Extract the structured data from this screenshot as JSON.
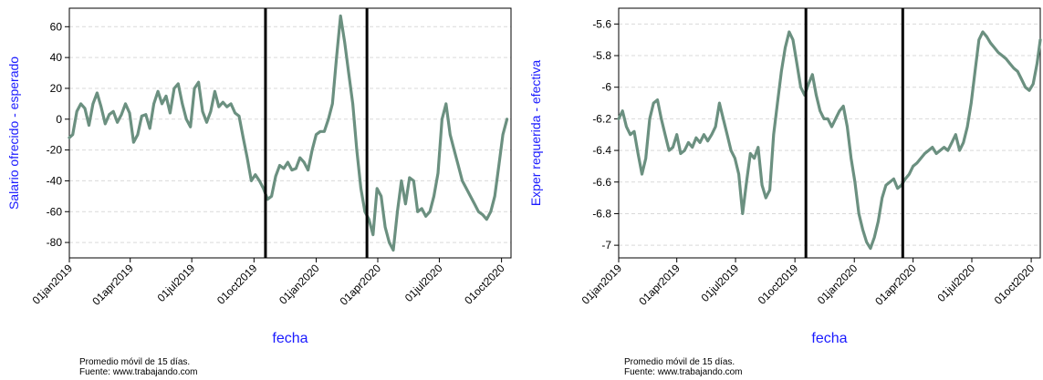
{
  "charts": [
    {
      "note_line1": "Promedio móvil de 15 días.",
      "note_line2": "Fuente: www.trabajando.com"
    },
    {
      "note_line1": "Promedio móvil de 15 días.",
      "note_line2": "Fuente: www.trabajando.com"
    }
  ],
  "colors": {
    "series": "#6b9080",
    "axis_label": "#1a1aff",
    "grid": "#d9d9d9",
    "vline": "#000000"
  },
  "chart_data": [
    {
      "type": "line",
      "xlabel": "fecha",
      "ylabel": "Salario ofrecido - esperado",
      "xlim": [
        "2019-01-01",
        "2020-10-15"
      ],
      "ylim": [
        -90,
        72
      ],
      "yticks": [
        -80,
        -60,
        -40,
        -20,
        0,
        20,
        40,
        60
      ],
      "xticks": [
        "2019-01-01",
        "2019-04-01",
        "2019-07-01",
        "2019-10-01",
        "2020-01-01",
        "2020-04-01",
        "2020-07-01",
        "2020-10-01"
      ],
      "xtick_labels": [
        "01jan2019",
        "01apr2019",
        "01jul2019",
        "01oct2019",
        "01jan2020",
        "01apr2020",
        "01jul2020",
        "01oct2020"
      ],
      "vlines": [
        "2019-10-18",
        "2020-03-16"
      ],
      "grid": true,
      "series": [
        {
          "x": [
            "2019-01-01",
            "2019-01-06",
            "2019-01-12",
            "2019-01-18",
            "2019-01-24",
            "2019-01-30",
            "2019-02-05",
            "2019-02-11",
            "2019-02-17",
            "2019-02-23",
            "2019-03-01",
            "2019-03-07",
            "2019-03-13",
            "2019-03-19",
            "2019-03-25",
            "2019-03-31",
            "2019-04-06",
            "2019-04-12",
            "2019-04-18",
            "2019-04-24",
            "2019-04-30",
            "2019-05-06",
            "2019-05-12",
            "2019-05-18",
            "2019-05-24",
            "2019-05-30",
            "2019-06-05",
            "2019-06-11",
            "2019-06-17",
            "2019-06-23",
            "2019-06-29",
            "2019-07-05",
            "2019-07-11",
            "2019-07-17",
            "2019-07-23",
            "2019-07-29",
            "2019-08-04",
            "2019-08-10",
            "2019-08-16",
            "2019-08-22",
            "2019-08-28",
            "2019-09-03",
            "2019-09-09",
            "2019-09-15",
            "2019-09-21",
            "2019-09-27",
            "2019-10-03",
            "2019-10-09",
            "2019-10-15",
            "2019-10-21",
            "2019-10-27",
            "2019-11-02",
            "2019-11-08",
            "2019-11-14",
            "2019-11-20",
            "2019-11-26",
            "2019-12-02",
            "2019-12-08",
            "2019-12-14",
            "2019-12-20",
            "2019-12-26",
            "2020-01-01",
            "2020-01-07",
            "2020-01-13",
            "2020-01-19",
            "2020-01-25",
            "2020-01-31",
            "2020-02-06",
            "2020-02-12",
            "2020-02-18",
            "2020-02-24",
            "2020-03-01",
            "2020-03-07",
            "2020-03-13",
            "2020-03-19",
            "2020-03-25",
            "2020-03-31",
            "2020-04-06",
            "2020-04-12",
            "2020-04-18",
            "2020-04-24",
            "2020-04-30",
            "2020-05-06",
            "2020-05-12",
            "2020-05-18",
            "2020-05-24",
            "2020-05-30",
            "2020-06-05",
            "2020-06-11",
            "2020-06-17",
            "2020-06-23",
            "2020-06-29",
            "2020-07-05",
            "2020-07-11",
            "2020-07-17",
            "2020-07-23",
            "2020-07-29",
            "2020-08-04",
            "2020-08-10",
            "2020-08-16",
            "2020-08-22",
            "2020-08-28",
            "2020-09-03",
            "2020-09-09",
            "2020-09-15",
            "2020-09-21",
            "2020-09-27",
            "2020-10-03",
            "2020-10-09"
          ],
          "values": [
            -12,
            -10,
            5,
            10,
            7,
            -4,
            10,
            17,
            8,
            -3,
            3,
            5,
            -2,
            3,
            10,
            4,
            -15,
            -10,
            2,
            3,
            -6,
            10,
            18,
            10,
            15,
            4,
            20,
            23,
            10,
            0,
            -5,
            20,
            24,
            5,
            -2,
            5,
            18,
            8,
            11,
            8,
            10,
            4,
            2,
            -12,
            -25,
            -40,
            -36,
            -40,
            -45,
            -52,
            -50,
            -37,
            -30,
            -32,
            -28,
            -33,
            -32,
            -25,
            -28,
            -33,
            -20,
            -10,
            -8,
            -8,
            0,
            10,
            40,
            67,
            50,
            30,
            10,
            -20,
            -45,
            -60,
            -65,
            -75,
            -45,
            -50,
            -70,
            -80,
            -85,
            -60,
            -40,
            -55,
            -38,
            -40,
            -60,
            -58,
            -63,
            -60,
            -50,
            -35,
            0,
            10,
            -10,
            -20,
            -30,
            -40,
            -45,
            -50,
            -55,
            -60,
            -62,
            -65,
            -60,
            -50,
            -30,
            -10,
            0
          ]
        }
      ]
    },
    {
      "type": "line",
      "xlabel": "fecha",
      "ylabel": "Exper requerida - efectiva",
      "xlim": [
        "2019-01-01",
        "2020-10-15"
      ],
      "ylim": [
        -7.08,
        -5.5
      ],
      "yticks": [
        -7,
        -6.8,
        -6.6,
        -6.4,
        -6.2,
        -6,
        -5.8,
        -5.6
      ],
      "ytick_labels": [
        "-7",
        "-6.8",
        "-6.6",
        "-6.4",
        "-6.2",
        "-6",
        "-5.8",
        "-5.6"
      ],
      "xticks": [
        "2019-01-01",
        "2019-04-01",
        "2019-07-01",
        "2019-10-01",
        "2020-01-01",
        "2020-04-01",
        "2020-07-01",
        "2020-10-01"
      ],
      "xtick_labels": [
        "01jan2019",
        "01apr2019",
        "01jul2019",
        "01oct2019",
        "01jan2020",
        "01apr2020",
        "01jul2020",
        "01oct2020"
      ],
      "vlines": [
        "2019-10-18",
        "2020-03-16"
      ],
      "grid": true,
      "series": [
        {
          "x": [
            "2019-01-01",
            "2019-01-07",
            "2019-01-13",
            "2019-01-19",
            "2019-01-25",
            "2019-01-31",
            "2019-02-06",
            "2019-02-12",
            "2019-02-18",
            "2019-02-24",
            "2019-03-02",
            "2019-03-08",
            "2019-03-14",
            "2019-03-20",
            "2019-03-26",
            "2019-04-01",
            "2019-04-07",
            "2019-04-13",
            "2019-04-19",
            "2019-04-25",
            "2019-05-01",
            "2019-05-07",
            "2019-05-13",
            "2019-05-19",
            "2019-05-25",
            "2019-05-31",
            "2019-06-06",
            "2019-06-12",
            "2019-06-18",
            "2019-06-24",
            "2019-06-30",
            "2019-07-06",
            "2019-07-12",
            "2019-07-18",
            "2019-07-24",
            "2019-07-30",
            "2019-08-05",
            "2019-08-11",
            "2019-08-17",
            "2019-08-23",
            "2019-08-29",
            "2019-09-04",
            "2019-09-10",
            "2019-09-16",
            "2019-09-22",
            "2019-09-28",
            "2019-10-04",
            "2019-10-10",
            "2019-10-16",
            "2019-10-22",
            "2019-10-28",
            "2019-11-03",
            "2019-11-09",
            "2019-11-15",
            "2019-11-21",
            "2019-11-27",
            "2019-12-03",
            "2019-12-09",
            "2019-12-15",
            "2019-12-21",
            "2019-12-27",
            "2020-01-02",
            "2020-01-08",
            "2020-01-14",
            "2020-01-20",
            "2020-01-26",
            "2020-02-01",
            "2020-02-07",
            "2020-02-13",
            "2020-02-19",
            "2020-02-25",
            "2020-03-02",
            "2020-03-08",
            "2020-03-14",
            "2020-03-20",
            "2020-03-26",
            "2020-04-01",
            "2020-04-07",
            "2020-04-13",
            "2020-04-19",
            "2020-04-25",
            "2020-05-01",
            "2020-05-07",
            "2020-05-13",
            "2020-05-19",
            "2020-05-25",
            "2020-05-31",
            "2020-06-06",
            "2020-06-12",
            "2020-06-18",
            "2020-06-24",
            "2020-06-30",
            "2020-07-06",
            "2020-07-12",
            "2020-07-18",
            "2020-07-24",
            "2020-07-30",
            "2020-08-05",
            "2020-08-11",
            "2020-08-17",
            "2020-08-23",
            "2020-08-29",
            "2020-09-04",
            "2020-09-10",
            "2020-09-16",
            "2020-09-22",
            "2020-09-28",
            "2020-10-04",
            "2020-10-10",
            "2020-10-15"
          ],
          "values": [
            -6.2,
            -6.15,
            -6.25,
            -6.3,
            -6.28,
            -6.42,
            -6.55,
            -6.45,
            -6.2,
            -6.1,
            -6.08,
            -6.2,
            -6.3,
            -6.4,
            -6.38,
            -6.3,
            -6.42,
            -6.4,
            -6.35,
            -6.38,
            -6.32,
            -6.35,
            -6.3,
            -6.34,
            -6.3,
            -6.25,
            -6.1,
            -6.2,
            -6.3,
            -6.4,
            -6.45,
            -6.55,
            -6.8,
            -6.6,
            -6.42,
            -6.45,
            -6.38,
            -6.62,
            -6.7,
            -6.65,
            -6.3,
            -6.1,
            -5.9,
            -5.75,
            -5.65,
            -5.7,
            -5.85,
            -6.0,
            -6.05,
            -5.98,
            -5.92,
            -6.05,
            -6.15,
            -6.2,
            -6.2,
            -6.25,
            -6.2,
            -6.15,
            -6.12,
            -6.25,
            -6.45,
            -6.6,
            -6.8,
            -6.9,
            -6.98,
            -7.02,
            -6.95,
            -6.85,
            -6.7,
            -6.62,
            -6.6,
            -6.58,
            -6.64,
            -6.62,
            -6.58,
            -6.55,
            -6.5,
            -6.48,
            -6.45,
            -6.42,
            -6.4,
            -6.38,
            -6.42,
            -6.4,
            -6.38,
            -6.4,
            -6.35,
            -6.3,
            -6.4,
            -6.35,
            -6.25,
            -6.1,
            -5.9,
            -5.7,
            -5.65,
            -5.68,
            -5.72,
            -5.75,
            -5.78,
            -5.8,
            -5.82,
            -5.85,
            -5.88,
            -5.9,
            -5.95,
            -6.0,
            -6.02,
            -5.98,
            -5.85,
            -5.7
          ]
        }
      ]
    }
  ]
}
